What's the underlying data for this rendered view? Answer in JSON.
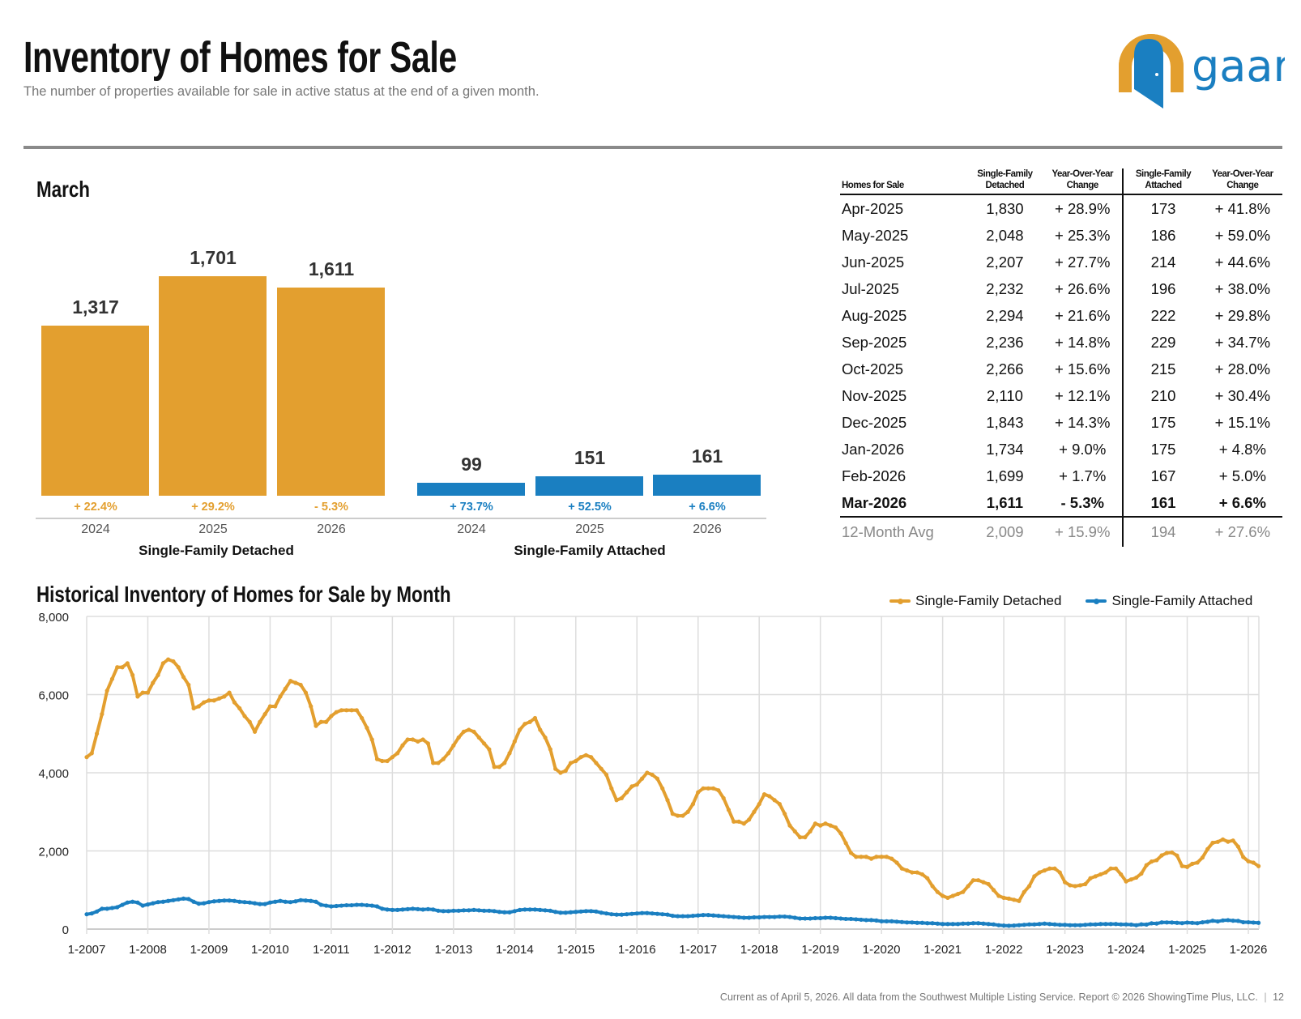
{
  "header": {
    "title": "Inventory of Homes for Sale",
    "subtitle": "The number of properties available for sale in active status at the end of a given month.",
    "logo_text": "gaar"
  },
  "colors": {
    "detached": "#E39F2F",
    "attached": "#1A7FC1",
    "logo_ring": "#E39F2F",
    "logo_door": "#1A7FC1"
  },
  "march_section": {
    "title": "March",
    "groups": [
      {
        "label": "Single-Family Detached",
        "color": "#E39F2F",
        "bars": [
          {
            "year": "2024",
            "value": 1317,
            "value_label": "1,317",
            "change": "+ 22.4%"
          },
          {
            "year": "2025",
            "value": 1701,
            "value_label": "1,701",
            "change": "+ 29.2%"
          },
          {
            "year": "2026",
            "value": 1611,
            "value_label": "1,611",
            "change": "- 5.3%"
          }
        ]
      },
      {
        "label": "Single-Family Attached",
        "color": "#1A7FC1",
        "bars": [
          {
            "year": "2024",
            "value": 99,
            "value_label": "99",
            "change": "+ 73.7%"
          },
          {
            "year": "2025",
            "value": 151,
            "value_label": "151",
            "change": "+ 52.5%"
          },
          {
            "year": "2026",
            "value": 161,
            "value_label": "161",
            "change": "+ 6.6%"
          }
        ]
      }
    ]
  },
  "table": {
    "headers": [
      "Homes for Sale",
      "Single-Family Detached",
      "Year-Over-Year Change",
      "Single-Family Attached",
      "Year-Over-Year Change"
    ],
    "rows": [
      [
        "Apr-2025",
        "1,830",
        "+ 28.9%",
        "173",
        "+ 41.8%"
      ],
      [
        "May-2025",
        "2,048",
        "+ 25.3%",
        "186",
        "+ 59.0%"
      ],
      [
        "Jun-2025",
        "2,207",
        "+ 27.7%",
        "214",
        "+ 44.6%"
      ],
      [
        "Jul-2025",
        "2,232",
        "+ 26.6%",
        "196",
        "+ 38.0%"
      ],
      [
        "Aug-2025",
        "2,294",
        "+ 21.6%",
        "222",
        "+ 29.8%"
      ],
      [
        "Sep-2025",
        "2,236",
        "+ 14.8%",
        "229",
        "+ 34.7%"
      ],
      [
        "Oct-2025",
        "2,266",
        "+ 15.6%",
        "215",
        "+ 28.0%"
      ],
      [
        "Nov-2025",
        "2,110",
        "+ 12.1%",
        "210",
        "+ 30.4%"
      ],
      [
        "Dec-2025",
        "1,843",
        "+ 14.3%",
        "175",
        "+ 15.1%"
      ],
      [
        "Jan-2026",
        "1,734",
        "+ 9.0%",
        "175",
        "+ 4.8%"
      ],
      [
        "Feb-2026",
        "1,699",
        "+ 1.7%",
        "167",
        "+ 5.0%"
      ],
      [
        "Mar-2026",
        "1,611",
        "- 5.3%",
        "161",
        "+ 6.6%"
      ]
    ],
    "average": [
      "12-Month Avg",
      "2,009",
      "+ 15.9%",
      "194",
      "+ 27.6%"
    ]
  },
  "chart_data": {
    "type": "line",
    "title": "Historical Inventory of Homes for Sale by Month",
    "xlabel": "",
    "ylabel": "",
    "x_start": "1-2007",
    "x_end": "3-2026",
    "x_interval": "monthly",
    "x_tick_labels": [
      "1-2007",
      "1-2008",
      "1-2009",
      "1-2010",
      "1-2011",
      "1-2012",
      "1-2013",
      "1-2014",
      "1-2015",
      "1-2016",
      "1-2017",
      "1-2018",
      "1-2019",
      "1-2020",
      "1-2021",
      "1-2022",
      "1-2023",
      "1-2024",
      "1-2025",
      "1-2026"
    ],
    "y_tick_labels": [
      "0",
      "2,000",
      "4,000",
      "6,000",
      "8,000"
    ],
    "ylim": [
      0,
      8000
    ],
    "grid": true,
    "legend_position": "top-right",
    "series": [
      {
        "name": "Single-Family Detached",
        "color": "#E39F2F",
        "values": [
          4400,
          4500,
          5000,
          5500,
          6100,
          6400,
          6700,
          6700,
          6800,
          6500,
          5950,
          6050,
          6050,
          6300,
          6500,
          6800,
          6900,
          6850,
          6700,
          6450,
          6250,
          5650,
          5700,
          5800,
          5850,
          5850,
          5900,
          5950,
          6050,
          5800,
          5650,
          5450,
          5300,
          5050,
          5300,
          5500,
          5700,
          5700,
          5950,
          6150,
          6350,
          6300,
          6250,
          6050,
          5700,
          5200,
          5300,
          5300,
          5450,
          5550,
          5600,
          5600,
          5600,
          5600,
          5400,
          5150,
          4850,
          4350,
          4300,
          4300,
          4400,
          4500,
          4700,
          4850,
          4850,
          4800,
          4850,
          4750,
          4250,
          4250,
          4350,
          4500,
          4700,
          4900,
          5050,
          5100,
          5050,
          4900,
          4750,
          4600,
          4150,
          4150,
          4250,
          4500,
          4800,
          5100,
          5250,
          5300,
          5400,
          5100,
          4900,
          4600,
          4100,
          4000,
          4050,
          4250,
          4300,
          4400,
          4450,
          4400,
          4250,
          4100,
          3950,
          3600,
          3300,
          3350,
          3500,
          3650,
          3700,
          3850,
          4000,
          3950,
          3850,
          3600,
          3300,
          2950,
          2900,
          2900,
          3000,
          3200,
          3500,
          3600,
          3600,
          3600,
          3550,
          3350,
          3050,
          2750,
          2750,
          2700,
          2800,
          3000,
          3200,
          3450,
          3400,
          3300,
          3200,
          2950,
          2650,
          2500,
          2350,
          2350,
          2500,
          2700,
          2650,
          2700,
          2650,
          2600,
          2450,
          2200,
          1950,
          1850,
          1850,
          1850,
          1800,
          1850,
          1850,
          1850,
          1800,
          1700,
          1550,
          1500,
          1450,
          1450,
          1400,
          1300,
          1100,
          950,
          850,
          800,
          850,
          900,
          950,
          1100,
          1250,
          1250,
          1200,
          1150,
          1000,
          850,
          800,
          780,
          750,
          720,
          950,
          1100,
          1350,
          1450,
          1500,
          1550,
          1550,
          1450,
          1200,
          1120,
          1100,
          1120,
          1150,
          1300,
          1350,
          1400,
          1450,
          1550,
          1550,
          1400,
          1220,
          1270,
          1317,
          1420,
          1635,
          1728,
          1763,
          1886,
          1948,
          1960,
          1882,
          1612,
          1591,
          1671,
          1701,
          1830,
          2048,
          2207,
          2232,
          2294,
          2236,
          2266,
          2110,
          1843,
          1734,
          1699,
          1611
        ]
      },
      {
        "name": "Single-Family Attached",
        "color": "#1A7FC1",
        "values": [
          380,
          400,
          450,
          520,
          520,
          540,
          560,
          620,
          680,
          700,
          680,
          600,
          630,
          660,
          690,
          700,
          720,
          740,
          760,
          780,
          770,
          700,
          650,
          660,
          690,
          710,
          720,
          730,
          730,
          720,
          700,
          690,
          680,
          660,
          640,
          640,
          680,
          700,
          720,
          700,
          690,
          710,
          740,
          730,
          720,
          700,
          620,
          600,
          580,
          590,
          600,
          610,
          610,
          620,
          620,
          610,
          600,
          580,
          520,
          500,
          490,
          490,
          500,
          510,
          520,
          510,
          500,
          510,
          500,
          470,
          460,
          460,
          470,
          470,
          480,
          480,
          490,
          480,
          470,
          470,
          460,
          440,
          430,
          430,
          460,
          490,
          500,
          500,
          500,
          490,
          480,
          470,
          440,
          420,
          420,
          430,
          440,
          450,
          460,
          460,
          450,
          420,
          400,
          380,
          370,
          370,
          380,
          390,
          400,
          410,
          410,
          400,
          390,
          380,
          370,
          340,
          330,
          330,
          330,
          340,
          350,
          360,
          360,
          350,
          340,
          330,
          320,
          310,
          300,
          290,
          290,
          300,
          300,
          310,
          310,
          310,
          320,
          320,
          310,
          290,
          270,
          270,
          270,
          280,
          280,
          290,
          290,
          280,
          270,
          260,
          260,
          250,
          240,
          230,
          230,
          220,
          200,
          200,
          200,
          190,
          180,
          170,
          170,
          160,
          160,
          150,
          150,
          140,
          130,
          130,
          130,
          130,
          140,
          140,
          150,
          150,
          140,
          130,
          120,
          100,
          90,
          85,
          90,
          100,
          110,
          120,
          120,
          130,
          140,
          130,
          120,
          110,
          110,
          100,
          100,
          100,
          110,
          120,
          120,
          130,
          130,
          130,
          130,
          120,
          120,
          115,
          99,
          122,
          117,
          148,
          142,
          171,
          170,
          168,
          161,
          152,
          167,
          159,
          151,
          173,
          186,
          214,
          196,
          222,
          229,
          215,
          210,
          175,
          175,
          167,
          161
        ]
      }
    ]
  },
  "footer": {
    "text": "Current as of April 5, 2026. All data from the Southwest Multiple Listing Service. Report © 2026 ShowingTime Plus, LLC.",
    "page": "12"
  }
}
